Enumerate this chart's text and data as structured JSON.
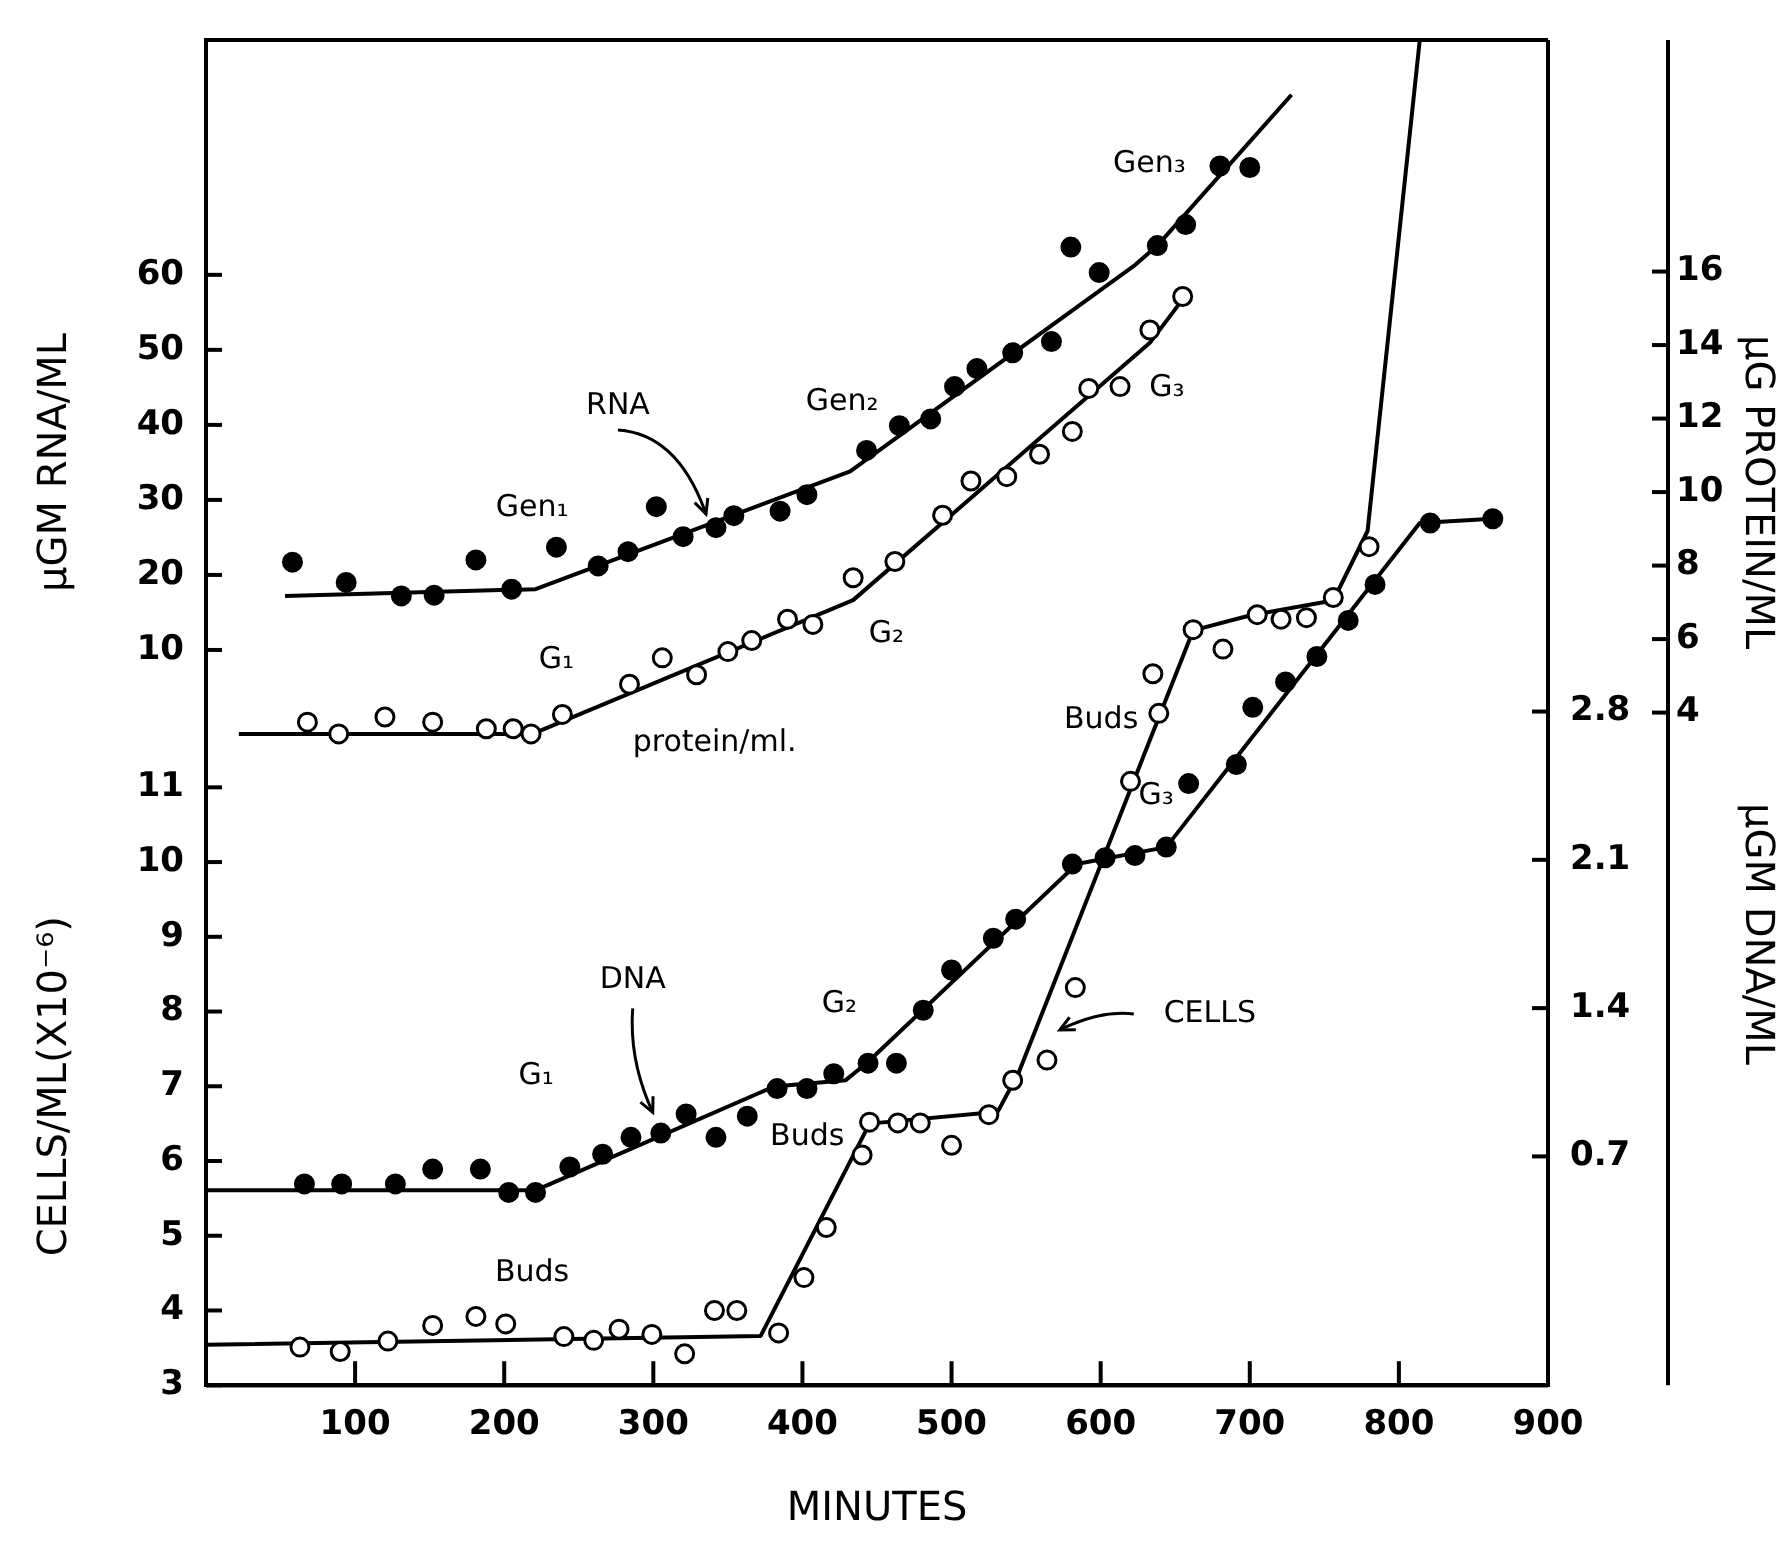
{
  "chart_data": [
    {
      "type": "scatter",
      "ylabel": "μGM RNA/ML",
      "y2label": "μG PROTEIN/ML",
      "tick_labels": "y",
      "xlim": [
        0,
        900
      ],
      "ylim": [
        -88,
        91.3
      ],
      "yticks": [
        10,
        20,
        30,
        40,
        50,
        60
      ],
      "y2lim": [
        -14.3,
        22.3
      ],
      "y2ticks": [
        4,
        6,
        8,
        10,
        12,
        14,
        16
      ],
      "marker": "circle",
      "series": [
        {
          "color": "#000000",
          "x": [
            58,
            94,
            131,
            153,
            181,
            205,
            235,
            263,
            283,
            302,
            320,
            342,
            354,
            385,
            403,
            443,
            465,
            486,
            502,
            517,
            541,
            567,
            580,
            599,
            638,
            657,
            680,
            700
          ],
          "values": [
            21.7,
            19.0,
            17.2,
            17.3,
            22.0,
            18.1,
            23.7,
            21.2,
            23.1,
            29.1,
            25.1,
            26.3,
            27.9,
            28.5,
            30.7,
            36.6,
            39.9,
            40.8,
            45.1,
            47.5,
            49.6,
            51.1,
            63.7,
            60.3,
            63.9,
            66.7,
            74.5,
            74.3
          ]
        },
        {
          "type": "line",
          "color": "#000000",
          "marker": "none",
          "x": [
            53,
            221,
            432,
            623,
            638,
            728
          ],
          "values": [
            17.2,
            18.1,
            33.8,
            61.3,
            63.9,
            84.0
          ]
        },
        {
          "axis": "y2",
          "color": "#ffffff",
          "x": [
            68,
            89,
            120,
            152,
            188,
            206,
            218,
            239,
            284,
            306,
            329,
            350,
            366,
            390,
            407,
            434,
            462,
            494,
            513,
            537,
            559,
            581,
            592,
            613,
            633,
            655
          ],
          "values": [
            3.74,
            3.42,
            3.88,
            3.74,
            3.56,
            3.56,
            3.42,
            3.95,
            4.77,
            5.49,
            5.03,
            5.66,
            5.96,
            6.54,
            6.4,
            7.67,
            8.11,
            9.37,
            10.3,
            10.42,
            11.03,
            11.65,
            12.82,
            12.87,
            14.41,
            15.32
          ]
        },
        {
          "type": "line",
          "axis": "y2",
          "color": "#000000",
          "marker": "none",
          "x": [
            22,
            219,
            434,
            633,
            659
          ],
          "values": [
            3.42,
            3.42,
            7.06,
            14.06,
            15.46
          ]
        }
      ],
      "annotations": [
        "RNA",
        "Gen₁",
        "Gen₂",
        "Gen₃",
        "G₁",
        "G₂",
        "G₃",
        "protein/ml."
      ]
    },
    {
      "type": "scatter",
      "xlabel": "MINUTES",
      "ylabel": "CELLS/ML(X10⁻⁶)",
      "y2label": "μGM DNA/ML",
      "xlim": [
        0,
        900
      ],
      "xticks": [
        100,
        200,
        300,
        400,
        500,
        600,
        700,
        800,
        900
      ],
      "ylim": [
        3,
        21
      ],
      "yticks": [
        3,
        4,
        5,
        6,
        7,
        8,
        9,
        10,
        11
      ],
      "y2lim": [
        -0.38,
        5.97
      ],
      "y2ticks": [
        0.7,
        1.4,
        2.1,
        2.8
      ],
      "marker": "circle",
      "series": [
        {
          "axis": "y2",
          "color": "#000000",
          "x": [
            66,
            91,
            127,
            152,
            184,
            203,
            221,
            244,
            266,
            285,
            305,
            322,
            342,
            363,
            383,
            403,
            421,
            444,
            463,
            481,
            500,
            528,
            543,
            581,
            603,
            623,
            644,
            659,
            691,
            702,
            724,
            745,
            766,
            784,
            821,
            863
          ],
          "values": [
            0.57,
            0.57,
            0.57,
            0.64,
            0.64,
            0.53,
            0.53,
            0.65,
            0.71,
            0.79,
            0.81,
            0.9,
            0.79,
            0.89,
            1.02,
            1.02,
            1.09,
            1.14,
            1.14,
            1.39,
            1.58,
            1.73,
            1.82,
            2.08,
            2.11,
            2.12,
            2.16,
            2.46,
            2.55,
            2.82,
            2.94,
            3.06,
            3.23,
            3.4,
            3.69,
            3.71
          ]
        },
        {
          "type": "line",
          "axis": "y2",
          "color": "#000000",
          "marker": "none",
          "x": [
            0,
            221,
            381,
            429,
            443,
            584,
            644,
            814,
            863
          ],
          "values": [
            0.54,
            0.54,
            1.03,
            1.06,
            1.14,
            2.08,
            2.16,
            3.69,
            3.71
          ]
        },
        {
          "color": "#ffffff",
          "x": [
            63,
            90,
            122,
            152,
            181,
            201,
            240,
            260,
            277,
            299,
            321,
            341,
            356,
            384,
            401,
            416,
            440,
            445,
            464,
            479,
            500,
            525,
            541,
            564,
            583,
            620,
            635,
            639,
            662,
            682,
            705,
            721,
            738,
            756,
            780
          ],
          "values": [
            3.51,
            3.45,
            3.59,
            3.8,
            3.92,
            3.82,
            3.65,
            3.6,
            3.75,
            3.68,
            3.42,
            4.0,
            4.0,
            3.7,
            4.44,
            5.11,
            6.08,
            6.52,
            6.51,
            6.51,
            6.21,
            6.62,
            7.08,
            7.35,
            8.32,
            11.08,
            12.52,
            11.99,
            13.11,
            12.85,
            13.31,
            13.25,
            13.27,
            13.54,
            14.22
          ]
        },
        {
          "type": "line",
          "color": "#000000",
          "marker": "none",
          "x": [
            0,
            372,
            445,
            531,
            545,
            662,
            700,
            756,
            779,
            814
          ],
          "values": [
            3.54,
            3.66,
            6.5,
            6.66,
            7.18,
            13.1,
            13.3,
            13.5,
            14.43,
            21
          ]
        }
      ],
      "annotations": [
        "DNA",
        "G₁",
        "G₂",
        "G₃",
        "Buds",
        "Buds",
        "Buds",
        "CELLS"
      ]
    }
  ]
}
